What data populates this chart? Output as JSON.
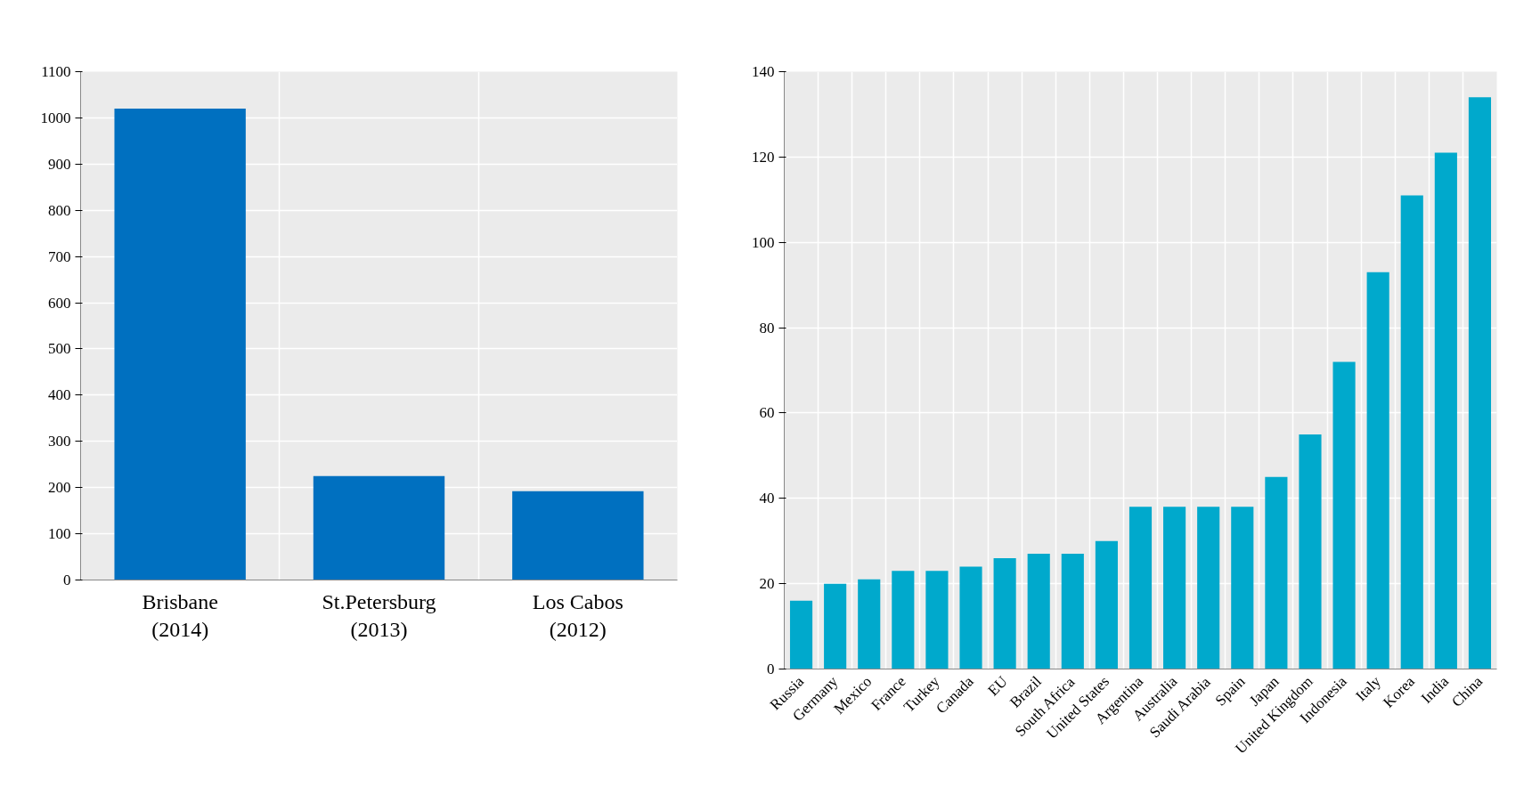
{
  "chart_data": [
    {
      "type": "bar",
      "categories": [
        "Brisbane\n(2014)",
        "St.Petersburg\n(2013)",
        "Los Cabos\n(2012)"
      ],
      "values": [
        1020,
        225,
        192
      ],
      "color": "#0070c0",
      "ylim": [
        0,
        1100
      ],
      "yticks": [
        0,
        100,
        200,
        300,
        400,
        500,
        600,
        700,
        800,
        900,
        1000,
        1100
      ],
      "grid": true
    },
    {
      "type": "bar",
      "categories": [
        "Russia",
        "Germany",
        "Mexico",
        "France",
        "Turkey",
        "Canada",
        "EU",
        "Brazil",
        "South Africa",
        "United States",
        "Argentina",
        "Australia",
        "Saudi Arabia",
        "Spain",
        "Japan",
        "United Kingdom",
        "Indonesia",
        "Italy",
        "Korea",
        "India",
        "China"
      ],
      "values": [
        16,
        20,
        21,
        23,
        23,
        24,
        26,
        27,
        27,
        30,
        38,
        38,
        38,
        38,
        45,
        55,
        72,
        93,
        111,
        121,
        134
      ],
      "color": "#00a9cc",
      "ylim": [
        0,
        140
      ],
      "yticks": [
        0,
        20,
        40,
        60,
        80,
        100,
        120,
        140
      ],
      "grid": true
    }
  ]
}
